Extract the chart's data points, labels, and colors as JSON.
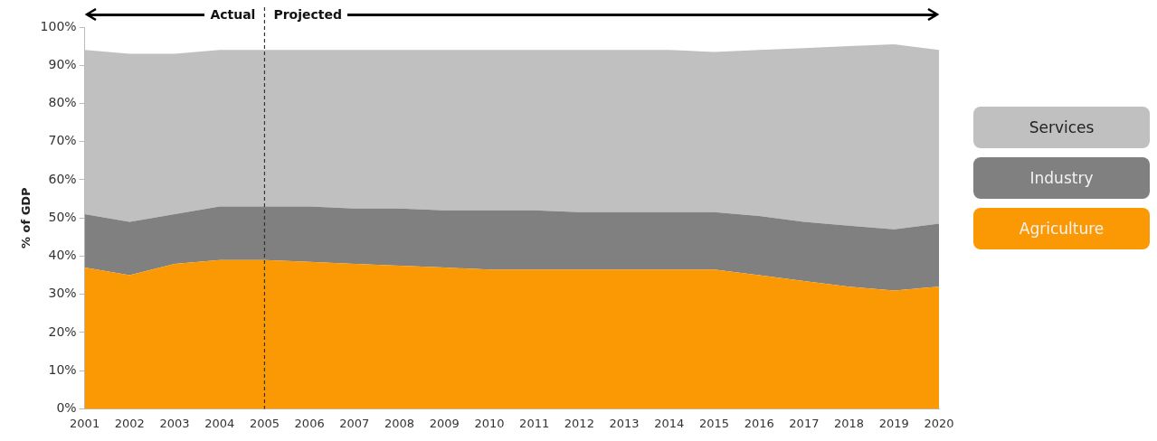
{
  "chart_data": {
    "type": "area",
    "ylabel": "% of GDP",
    "stacked": true,
    "legend": "right",
    "grid": false,
    "categories": [
      "2001",
      "2002",
      "2003",
      "2004",
      "2005",
      "2006",
      "2007",
      "2008",
      "2009",
      "2010",
      "2011",
      "2012",
      "2013",
      "2014",
      "2015",
      "2016",
      "2017",
      "2018",
      "2019",
      "2020"
    ],
    "ylim": [
      0,
      100
    ],
    "yticks": [
      {
        "value": 0,
        "label": "0%"
      },
      {
        "value": 10,
        "label": "10%"
      },
      {
        "value": 20,
        "label": "20%"
      },
      {
        "value": 30,
        "label": "30%"
      },
      {
        "value": 40,
        "label": "40%"
      },
      {
        "value": 50,
        "label": "50%"
      },
      {
        "value": 60,
        "label": "60%"
      },
      {
        "value": 70,
        "label": "70%"
      },
      {
        "value": 80,
        "label": "80%"
      },
      {
        "value": 90,
        "label": "90%"
      },
      {
        "value": 100,
        "label": "100%"
      }
    ],
    "series": [
      {
        "name": "Agriculture",
        "color": "#fb9904",
        "values": [
          37,
          35,
          38,
          39,
          39,
          38.5,
          38,
          37.5,
          37,
          36.5,
          36.5,
          36.5,
          36.5,
          36.5,
          36.5,
          35,
          33.5,
          32,
          31,
          32
        ]
      },
      {
        "name": "Industry",
        "color": "#808080",
        "values": [
          14,
          14,
          13,
          14,
          14,
          14.5,
          14.5,
          15,
          15,
          15.5,
          15.5,
          15,
          15,
          15,
          15,
          15.5,
          15.5,
          16,
          16,
          16.5
        ]
      },
      {
        "name": "Services",
        "color": "#c0c0c0",
        "values": [
          43,
          44,
          42,
          41,
          41,
          41,
          41.5,
          41.5,
          42,
          42,
          42,
          42.5,
          42.5,
          42.5,
          42,
          43.5,
          45.5,
          47,
          48.5,
          45.5
        ]
      }
    ],
    "ref_lines": [
      {
        "axis": "x",
        "value": "2005",
        "color": "#333333",
        "line_style": "dashed"
      }
    ],
    "annotations": [
      "Actual",
      "Projected"
    ]
  }
}
